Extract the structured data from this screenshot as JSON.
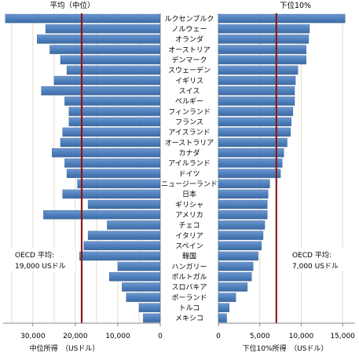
{
  "chart_data": {
    "type": "bar",
    "orientation": "horizontal",
    "categories": [
      "ルクセンブルク",
      "ノルウェー",
      "オランダ",
      "オーストリア",
      "デンマーク",
      "スウェーデン",
      "イギリス",
      "スイス",
      "ベルギー",
      "フィンランド",
      "フランス",
      "アイスランド",
      "オーストラリア",
      "カナダ",
      "アイルランド",
      "ドイツ",
      "ニュージーランド",
      "日本",
      "ギリシャ",
      "アメリカ",
      "チェコ",
      "イタリア",
      "スペイン",
      "韓国",
      "ハンガリー",
      "ポルトガル",
      "スロバキア",
      "ポーランド",
      "トルコ",
      "メキシコ"
    ],
    "panels": [
      {
        "title": "平均（中位）",
        "xlabel": "中位所得　（USドル）",
        "direction": "reversed",
        "xlim": [
          0,
          37000
        ],
        "ticks": [
          30000,
          20000,
          10000,
          0
        ],
        "tick_labels": [
          "30,000",
          "20,000",
          "10,000",
          "0"
        ],
        "reference_value": 18500,
        "reference_label": [
          "OECD 平均:",
          "19,000 USドル"
        ],
        "values": [
          36500,
          27000,
          29000,
          26000,
          23500,
          22000,
          25000,
          28000,
          22500,
          21500,
          21500,
          23000,
          23500,
          25500,
          22500,
          22000,
          19500,
          23000,
          17000,
          27500,
          12500,
          17000,
          18000,
          19000,
          10000,
          12000,
          9000,
          8000,
          5000,
          4000
        ]
      },
      {
        "title": "下位10%",
        "xlabel": "下位10%所得　（USドル）",
        "direction": "normal",
        "xlim": [
          0,
          16500
        ],
        "ticks": [
          0,
          5000,
          10000,
          15000
        ],
        "tick_labels": [
          "0",
          "5,000",
          "10,000",
          "15,000"
        ],
        "reference_value": 7000,
        "reference_label": [
          "OECD 平均:",
          "7,000 USドル"
        ],
        "values": [
          15300,
          11000,
          10900,
          10600,
          10600,
          9600,
          9300,
          9200,
          9200,
          9000,
          8800,
          8700,
          8300,
          7900,
          7700,
          7500,
          6200,
          6000,
          5900,
          5900,
          5600,
          5400,
          5200,
          4800,
          4200,
          4000,
          3500,
          2100,
          1300,
          1000
        ]
      }
    ],
    "bar_color": "#4f81bd",
    "reference_line_color": "#8b1a1a",
    "gridlines": true
  }
}
